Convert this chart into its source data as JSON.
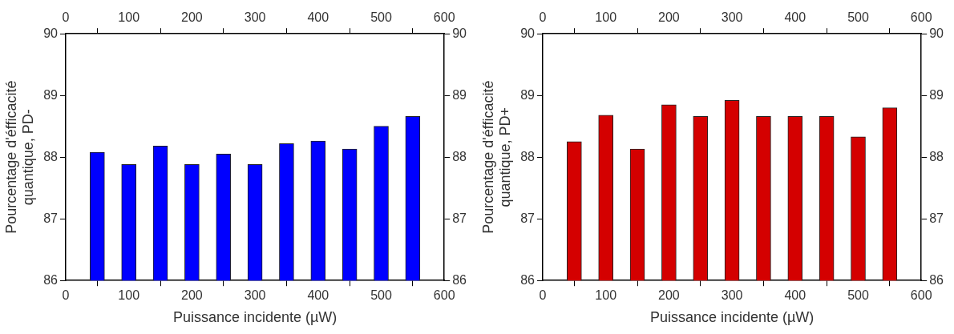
{
  "chart_data": [
    {
      "type": "bar",
      "xlabel": "Puissance incidente (µW)",
      "ylabel": "Pourcentage d'éfficacité quantique, PD-",
      "x": [
        50,
        100,
        150,
        200,
        250,
        300,
        350,
        400,
        450,
        500,
        550
      ],
      "series": [
        {
          "color": "#0000ff",
          "values": [
            88.08,
            87.88,
            88.18,
            87.88,
            88.05,
            87.88,
            88.22,
            88.26,
            88.13,
            88.5,
            88.66
          ]
        }
      ],
      "xlim": [
        0,
        600
      ],
      "xticks": [
        0,
        100,
        200,
        300,
        400,
        500,
        600
      ],
      "x2lim": [
        0,
        600
      ],
      "x2ticks": [
        0,
        100,
        200,
        300,
        400,
        500,
        600
      ],
      "ylim": [
        86,
        90
      ],
      "yticks": [
        86,
        87,
        88,
        89,
        90
      ],
      "y2lim": [
        86,
        90
      ],
      "y2ticks": [
        86,
        87,
        88,
        89,
        90
      ],
      "grid": false,
      "legend": false
    },
    {
      "type": "bar",
      "xlabel": "Puissance incidente (µW)",
      "ylabel": "Pourcentage d'éfficacité quantique, PD+",
      "x": [
        50,
        100,
        150,
        200,
        250,
        300,
        350,
        400,
        450,
        500,
        550
      ],
      "series": [
        {
          "color": "#d40000",
          "values": [
            88.25,
            88.68,
            88.13,
            88.85,
            88.66,
            88.92,
            88.66,
            88.66,
            88.66,
            88.33,
            88.8
          ]
        }
      ],
      "xlim": [
        0,
        600
      ],
      "xticks": [
        0,
        100,
        200,
        300,
        400,
        500,
        600
      ],
      "x2lim": [
        0,
        600
      ],
      "x2ticks": [
        0,
        100,
        200,
        300,
        400,
        500,
        600
      ],
      "ylim": [
        86,
        90
      ],
      "yticks": [
        86,
        87,
        88,
        89,
        90
      ],
      "y2lim": [
        86,
        90
      ],
      "y2ticks": [
        86,
        87,
        88,
        89,
        90
      ],
      "grid": false,
      "legend": false
    }
  ]
}
